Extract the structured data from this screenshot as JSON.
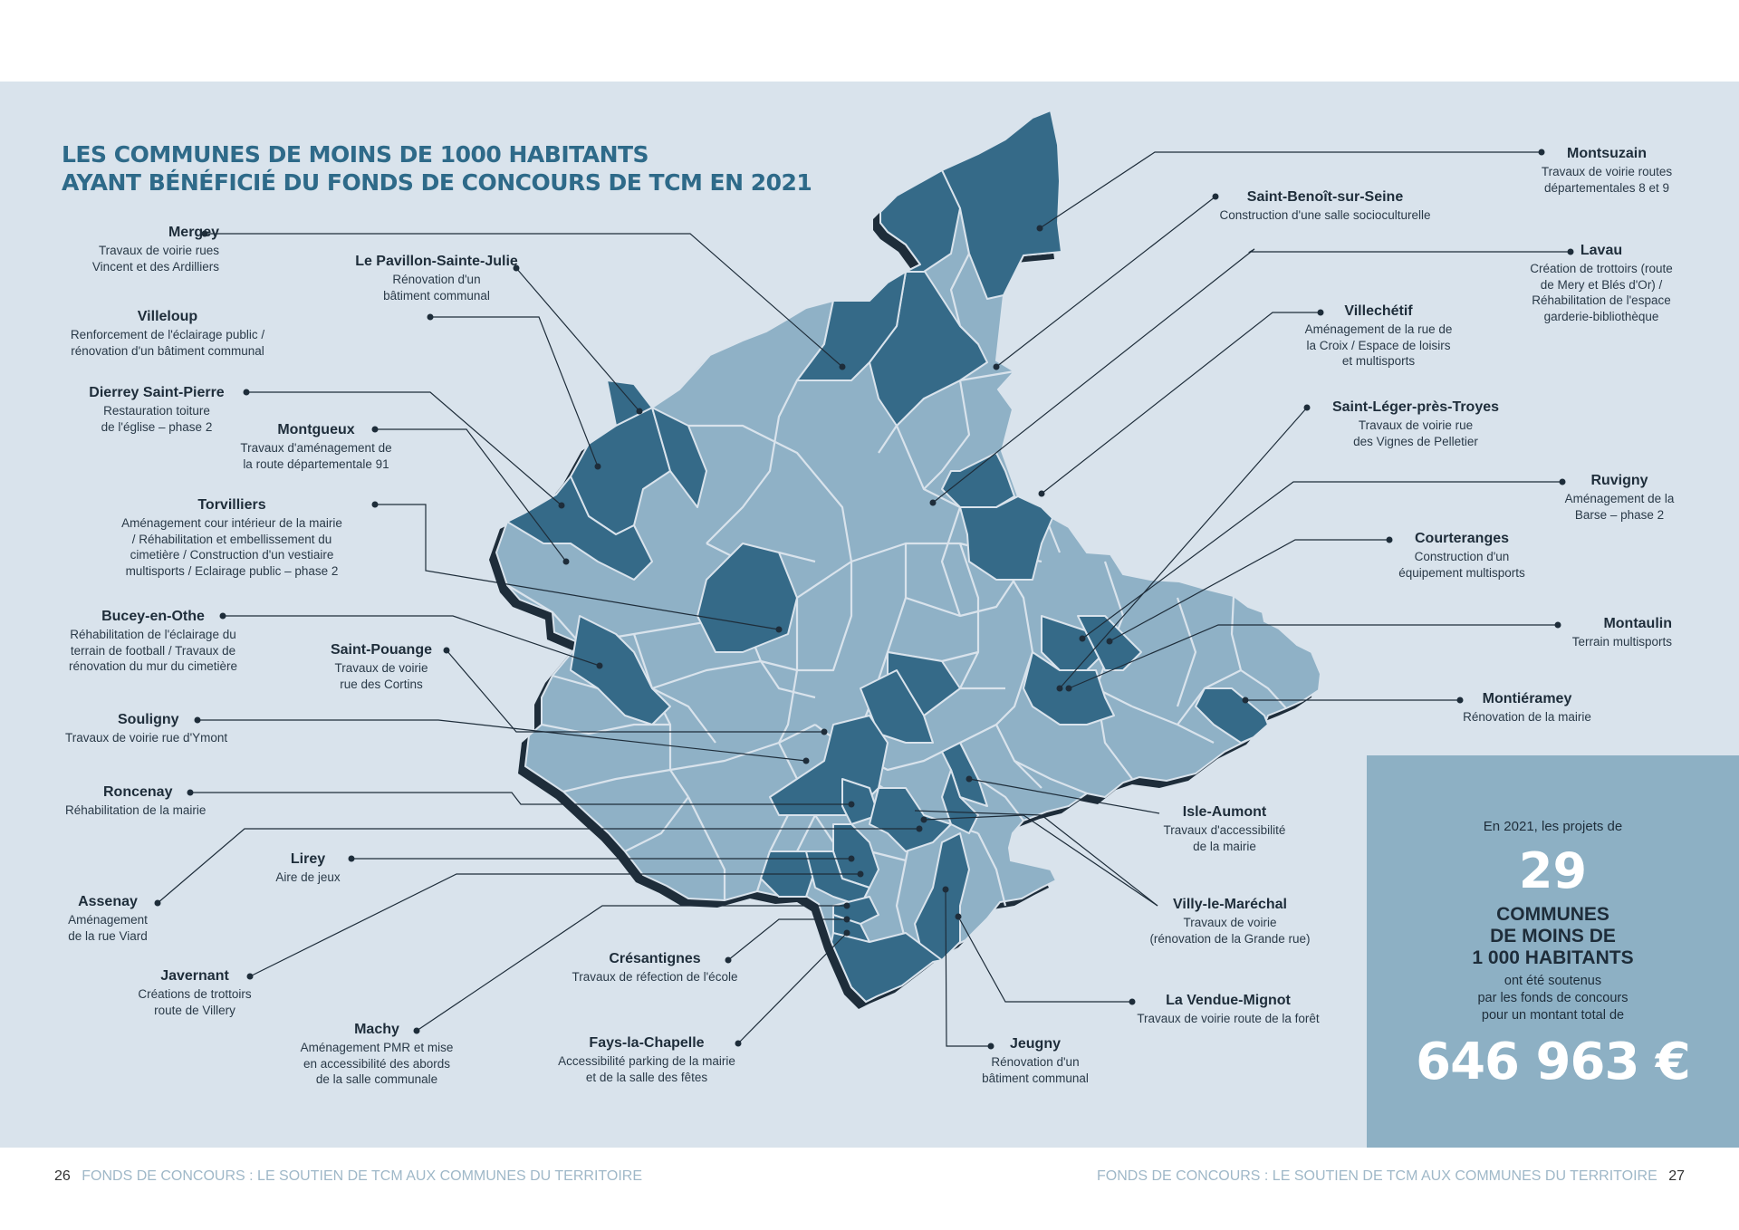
{
  "title": {
    "line1": "LES COMMUNES DE MOINS DE 1000 HABITANTS",
    "line2": "AYANT BÉNÉFICIÉ DU FONDS DE CONCOURS DE TCM EN 2021"
  },
  "colors": {
    "background_panel": "#d9e3ec",
    "commune_light": "#8fb1c6",
    "commune_dark": "#356a88",
    "map_shadow": "#1e2d3a",
    "title": "#2e6a89",
    "summary_box": "#8db0c4"
  },
  "communes": [
    {
      "name": "Mergey",
      "description": [
        "Travaux de voirie rues",
        "Vincent et des Ardilliers"
      ]
    },
    {
      "name": "Le Pavillon-Sainte-Julie",
      "description": [
        "Rénovation d'un",
        "bâtiment communal"
      ]
    },
    {
      "name": "Villeloup",
      "description": [
        "Renforcement de l'éclairage public /",
        "rénovation d'un bâtiment communal"
      ]
    },
    {
      "name": "Dierrey Saint-Pierre",
      "description": [
        "Restauration toiture",
        "de l'église – phase 2"
      ]
    },
    {
      "name": "Montgueux",
      "description": [
        "Travaux d'aménagement de",
        "la route départementale 91"
      ]
    },
    {
      "name": "Torvilliers",
      "description": [
        "Aménagement cour intérieur de la mairie",
        "/ Réhabilitation et embellissement du",
        "cimetière / Construction d'un vestiaire",
        "multisports / Eclairage public – phase 2"
      ]
    },
    {
      "name": "Bucey-en-Othe",
      "description": [
        "Réhabilitation de l'éclairage du",
        "terrain de football / Travaux de",
        "rénovation du mur du cimetière"
      ]
    },
    {
      "name": "Saint-Pouange",
      "description": [
        "Travaux de voirie",
        "rue des Cortins"
      ]
    },
    {
      "name": "Souligny",
      "description": [
        "Travaux de voirie rue d'Ymont"
      ]
    },
    {
      "name": "Roncenay",
      "description": [
        "Réhabilitation de la mairie"
      ]
    },
    {
      "name": "Lirey",
      "description": [
        "Aire de jeux"
      ]
    },
    {
      "name": "Assenay",
      "description": [
        "Aménagement",
        "de la rue Viard"
      ]
    },
    {
      "name": "Javernant",
      "description": [
        "Créations de trottoirs",
        "route de Villery"
      ]
    },
    {
      "name": "Machy",
      "description": [
        "Aménagement PMR et mise",
        "en accessibilité des abords",
        "de la salle communale"
      ]
    },
    {
      "name": "Crésantignes",
      "description": [
        "Travaux de réfection de l'école"
      ]
    },
    {
      "name": "Fays-la-Chapelle",
      "description": [
        "Accessibilité parking de la mairie",
        "et de la salle des fêtes"
      ]
    },
    {
      "name": "Jeugny",
      "description": [
        "Rénovation d'un",
        "bâtiment communal"
      ]
    },
    {
      "name": "La Vendue-Mignot",
      "description": [
        "Travaux de voirie route de la forêt"
      ]
    },
    {
      "name": "Villy-le-Maréchal",
      "description": [
        "Travaux de voirie",
        "(rénovation de la Grande rue)"
      ]
    },
    {
      "name": "Isle-Aumont",
      "description": [
        "Travaux d'accessibilité",
        "de la mairie"
      ]
    },
    {
      "name": "Montiéramey",
      "description": [
        "Rénovation de la mairie"
      ]
    },
    {
      "name": "Montaulin",
      "description": [
        "Terrain multisports"
      ]
    },
    {
      "name": "Courteranges",
      "description": [
        "Construction d'un",
        "équipement multisports"
      ]
    },
    {
      "name": "Ruvigny",
      "description": [
        "Aménagement de la",
        "Barse – phase 2"
      ]
    },
    {
      "name": "Saint-Léger-près-Troyes",
      "description": [
        "Travaux de voirie rue",
        "des Vignes de Pelletier"
      ]
    },
    {
      "name": "Villechétif",
      "description": [
        "Aménagement de la rue de",
        "la Croix / Espace de loisirs",
        "et multisports"
      ]
    },
    {
      "name": "Lavau",
      "description": [
        "Création de trottoirs (route",
        "de Mery et Blés d'Or) /",
        "Réhabilitation de l'espace",
        "garderie-bibliothèque"
      ]
    },
    {
      "name": "Saint-Benoît-sur-Seine",
      "description": [
        "Construction d'une salle socioculturelle"
      ]
    },
    {
      "name": "Montsuzain",
      "description": [
        "Travaux de voirie routes",
        "départementales 8 et 9"
      ]
    }
  ],
  "summary": {
    "intro": "En 2021, les projets de",
    "count": "29",
    "line1": "COMMUNES",
    "line2": "DE MOINS DE",
    "line3": "1 000 HABITANTS",
    "desc1": "ont été soutenus",
    "desc2": "par les fonds de concours",
    "desc3": "pour un montant total de",
    "amount": "646 963 €"
  },
  "footer": {
    "left_page": "26",
    "left_text": "FONDS DE CONCOURS : LE SOUTIEN DE TCM AUX COMMUNES DU TERRITOIRE",
    "right_text": "FONDS DE CONCOURS : LE SOUTIEN DE TCM AUX COMMUNES DU TERRITOIRE",
    "right_page": "27"
  }
}
